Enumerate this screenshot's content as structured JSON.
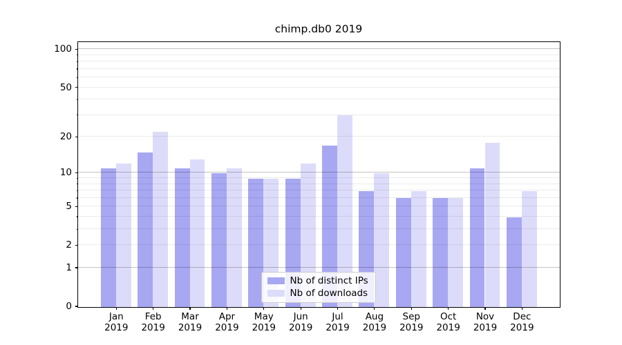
{
  "title": "chimp.db0 2019",
  "colors": {
    "distinct_ips": "#a7a7f2",
    "downloads": "#dcdcfa",
    "grid_major": "rgba(0,0,0,0.24)",
    "grid_minor": "rgba(0,0,0,0.08)"
  },
  "legend": {
    "items": [
      {
        "label": "Nb of distinct IPs",
        "series": "distinct_ips"
      },
      {
        "label": "Nb of downloads",
        "series": "downloads"
      }
    ]
  },
  "chart_data": {
    "type": "bar",
    "title": "chimp.db0 2019",
    "categories": [
      "Jan 2019",
      "Feb 2019",
      "Mar 2019",
      "Apr 2019",
      "May 2019",
      "Jun 2019",
      "Jul 2019",
      "Aug 2019",
      "Sep 2019",
      "Oct 2019",
      "Nov 2019",
      "Dec 2019"
    ],
    "series": [
      {
        "name": "Nb of distinct IPs",
        "color_key": "distinct_ips",
        "values": [
          11,
          15,
          11,
          10,
          9,
          9,
          17,
          7,
          6,
          6,
          11,
          4
        ]
      },
      {
        "name": "Nb of downloads",
        "color_key": "downloads",
        "values": [
          12,
          22,
          13,
          11,
          9,
          12,
          30,
          10,
          7,
          6,
          18,
          7
        ]
      }
    ],
    "xlabel": "",
    "ylabel": "",
    "yscale": "log1p",
    "ylim": [
      0,
      114
    ],
    "yticks": [
      0,
      1,
      2,
      5,
      10,
      20,
      50,
      100
    ],
    "minor_yticks": [
      3,
      4,
      6,
      7,
      8,
      9,
      30,
      40,
      60,
      70,
      80,
      90
    ],
    "major_grid_at": [
      1,
      10,
      100
    ],
    "grid": true,
    "legend_position": "lower center"
  }
}
